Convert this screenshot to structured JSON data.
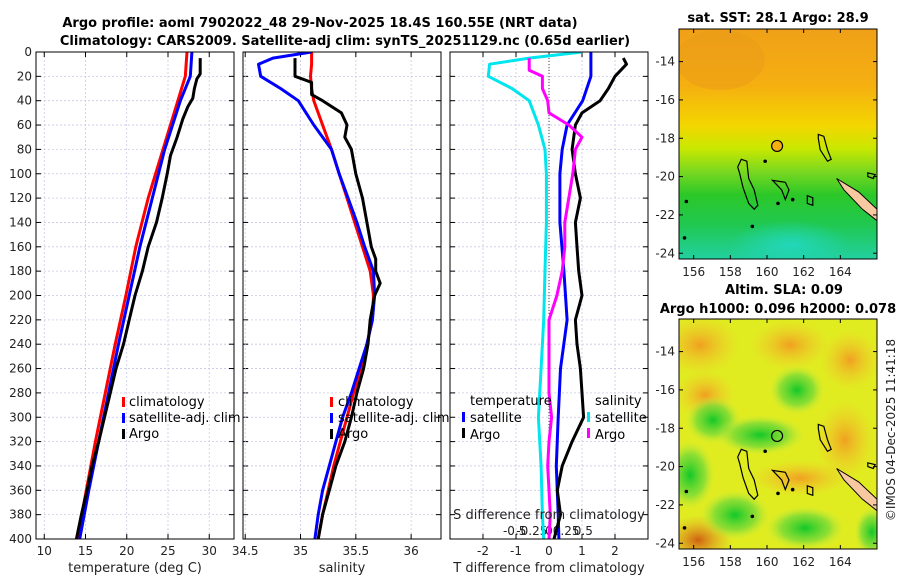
{
  "titles": {
    "line1": "Argo profile: aoml 7902022_48 29-Nov-2025 18.4S 160.55E (NRT data)",
    "line2": "Climatology: CARS2009. Satellite-adj clim: synTS_20251129.nc (0.65d earlier)"
  },
  "colors": {
    "climatology": "#ff0000",
    "satellite": "#0000ff",
    "argo": "#000000",
    "sal_satellite": "#00e5ee",
    "sal_argo": "#ff00ff"
  },
  "chart_data": [
    {
      "type": "line",
      "name": "temperature-profile",
      "xlabel": "temperature (deg C)",
      "ylabel": "",
      "xlim": [
        9,
        33
      ],
      "ylim": [
        400,
        0
      ],
      "xticks": [
        10,
        15,
        20,
        25,
        30
      ],
      "yticks": [
        0,
        20,
        40,
        60,
        80,
        100,
        120,
        140,
        160,
        180,
        200,
        220,
        240,
        260,
        280,
        300,
        320,
        340,
        360,
        380,
        400
      ],
      "grid": true,
      "legend": {
        "placement": "bottom-right",
        "entries": [
          "climatology",
          "satellite-adj. clim",
          "Argo"
        ]
      },
      "series": [
        {
          "name": "climatology",
          "color_key": "climatology",
          "depth": [
            0,
            20,
            40,
            80,
            120,
            160,
            200,
            240,
            280,
            320,
            360,
            400
          ],
          "values": [
            27.3,
            27.1,
            26.2,
            24.4,
            22.6,
            21.1,
            19.9,
            18.6,
            17.4,
            16.2,
            15.1,
            14.0
          ]
        },
        {
          "name": "satellite-adj. clim",
          "color_key": "satellite",
          "depth": [
            0,
            20,
            40,
            80,
            120,
            160,
            200,
            240,
            280,
            320,
            360,
            400
          ],
          "values": [
            27.9,
            27.7,
            26.5,
            24.6,
            23.1,
            21.6,
            20.3,
            19.0,
            17.8,
            16.6,
            15.4,
            14.3
          ]
        },
        {
          "name": "Argo",
          "color_key": "argo",
          "depth": [
            5,
            10,
            18,
            22,
            30,
            38,
            45,
            55,
            70,
            85,
            100,
            120,
            140,
            160,
            180,
            200,
            220,
            240,
            260,
            280,
            300,
            320,
            340,
            360,
            380,
            400
          ],
          "values": [
            28.9,
            28.9,
            28.9,
            28.5,
            28.2,
            28.0,
            27.4,
            26.8,
            26.1,
            25.3,
            24.9,
            24.3,
            23.6,
            22.6,
            21.9,
            21.0,
            20.3,
            19.6,
            18.7,
            18.0,
            17.3,
            16.6,
            15.8,
            15.2,
            14.5,
            13.9
          ]
        }
      ]
    },
    {
      "type": "line",
      "name": "salinity-profile",
      "xlabel": "salinity",
      "xlim": [
        34.48,
        36.27
      ],
      "ylim": [
        400,
        0
      ],
      "xticks": [
        34.5,
        35,
        35.5,
        36
      ],
      "xtick_labels": [
        "34.5",
        "35",
        "35.5",
        "36"
      ],
      "grid": true,
      "legend": {
        "placement": "bottom-right",
        "entries": [
          "climatology",
          "satellite-adj. clim",
          "Argo"
        ]
      },
      "series": [
        {
          "name": "climatology",
          "color_key": "climatology",
          "depth": [
            0,
            10,
            20,
            30,
            40,
            60,
            80,
            100,
            120,
            140,
            160,
            180,
            200,
            220,
            240,
            260,
            280,
            300,
            320,
            340,
            360,
            380,
            400
          ],
          "values": [
            35.1,
            35.1,
            35.09,
            35.1,
            35.12,
            35.2,
            35.28,
            35.35,
            35.42,
            35.49,
            35.56,
            35.63,
            35.66,
            35.65,
            35.6,
            35.55,
            35.48,
            35.42,
            35.36,
            35.3,
            35.25,
            35.2,
            35.16
          ]
        },
        {
          "name": "satellite-adj. clim",
          "color_key": "satellite",
          "depth": [
            0,
            5,
            10,
            20,
            30,
            40,
            60,
            80,
            100,
            120,
            140,
            160,
            180,
            200,
            220,
            240,
            260,
            280,
            300,
            320,
            340,
            360,
            380,
            400
          ],
          "values": [
            35.1,
            34.75,
            34.62,
            34.64,
            34.82,
            34.98,
            35.12,
            35.28,
            35.35,
            35.43,
            35.51,
            35.58,
            35.66,
            35.67,
            35.65,
            35.6,
            35.53,
            35.46,
            35.38,
            35.32,
            35.26,
            35.2,
            35.16,
            35.13
          ]
        },
        {
          "name": "Argo",
          "color_key": "argo",
          "depth": [
            5,
            20,
            25,
            35,
            40,
            50,
            60,
            70,
            80,
            100,
            120,
            140,
            160,
            170,
            180,
            190,
            200,
            220,
            240,
            260,
            280,
            300,
            320,
            340,
            360,
            380,
            400
          ],
          "values": [
            34.95,
            34.95,
            35.1,
            35.1,
            35.2,
            35.37,
            35.42,
            35.4,
            35.46,
            35.5,
            35.56,
            35.6,
            35.64,
            35.68,
            35.68,
            35.72,
            35.67,
            35.63,
            35.61,
            35.57,
            35.51,
            35.46,
            35.4,
            35.32,
            35.26,
            35.2,
            35.16
          ]
        }
      ]
    },
    {
      "type": "line",
      "name": "difference-profile",
      "xlabel": "T difference from climatology",
      "xlim": [
        -3,
        3
      ],
      "ylim": [
        400,
        0
      ],
      "xticks": [
        -2,
        -1,
        0,
        1,
        2
      ],
      "top_axis_label": "S difference from climatology",
      "top_xticks": [
        "-0.5",
        "-0.25",
        "0",
        "0.25",
        "0.5"
      ],
      "grid": true,
      "legend": {
        "placement": "bottom",
        "temperature_heading": "temperature",
        "salinity_heading": "salinity",
        "entries": [
          "satellite",
          "Argo",
          "satellite",
          "Argo"
        ]
      },
      "series": [
        {
          "name": "temperature satellite",
          "color_key": "satellite",
          "depth": [
            0,
            20,
            40,
            60,
            80,
            100,
            140,
            180,
            220,
            260,
            300,
            340,
            380,
            400
          ],
          "values": [
            1.27,
            1.27,
            1.02,
            0.55,
            0.4,
            0.33,
            0.33,
            0.45,
            0.55,
            0.35,
            0.28,
            0.22,
            0.28,
            0.3
          ]
        },
        {
          "name": "temperature Argo",
          "color_key": "argo",
          "depth": [
            5,
            10,
            20,
            30,
            40,
            50,
            60,
            80,
            100,
            120,
            140,
            160,
            180,
            200,
            220,
            240,
            260,
            280,
            300,
            320,
            340,
            360,
            380,
            400
          ],
          "values": [
            2.25,
            2.35,
            2.0,
            1.8,
            1.55,
            1.0,
            0.8,
            0.7,
            0.8,
            0.95,
            0.8,
            0.85,
            0.9,
            1.0,
            0.8,
            0.85,
            0.95,
            1.0,
            1.05,
            0.7,
            0.4,
            0.25,
            0.35,
            0.15
          ]
        },
        {
          "name": "salinity satellite",
          "color_key": "sal_satellite",
          "depth": [
            0,
            5,
            10,
            20,
            30,
            40,
            60,
            80,
            100,
            140,
            180,
            220,
            260,
            300,
            340,
            380,
            400
          ],
          "values": [
            0.25,
            -0.15,
            -0.45,
            -0.46,
            -0.28,
            -0.15,
            -0.08,
            -0.03,
            -0.02,
            -0.02,
            -0.03,
            -0.04,
            -0.06,
            -0.08,
            -0.06,
            -0.05,
            -0.04
          ]
        },
        {
          "name": "salinity Argo",
          "color_key": "sal_argo",
          "depth": [
            5,
            15,
            20,
            30,
            40,
            50,
            60,
            70,
            80,
            100,
            120,
            140,
            160,
            180,
            200,
            220,
            240,
            260,
            280,
            300,
            320,
            340,
            360,
            380,
            400
          ],
          "values": [
            -0.15,
            -0.15,
            -0.05,
            -0.05,
            -0.01,
            0.0,
            0.15,
            0.25,
            0.2,
            0.18,
            0.15,
            0.12,
            0.12,
            0.1,
            0.06,
            0.0,
            0.0,
            0.0,
            0.0,
            0.02,
            0.0,
            -0.01,
            0.0,
            0.01,
            0.0
          ]
        }
      ]
    },
    {
      "type": "heatmap",
      "name": "sst-map",
      "title": "sat. SST: 28.1 Argo: 28.9",
      "xlim": [
        155.2,
        166.0
      ],
      "ylim": [
        -24.3,
        -12.3
      ],
      "xticks": [
        156,
        158,
        160,
        162,
        164
      ],
      "yticks": [
        -14,
        -16,
        -18,
        -20,
        -22,
        -24
      ],
      "argo_position": {
        "lon": 160.55,
        "lat": -18.4
      }
    },
    {
      "type": "heatmap",
      "name": "sla-map",
      "title_line1": "Altim. SLA: 0.09",
      "title_line2": "Argo h1000: 0.096 h2000: 0.078",
      "xlim": [
        155.2,
        166.0
      ],
      "ylim": [
        -24.3,
        -12.3
      ],
      "xticks": [
        156,
        158,
        160,
        162,
        164
      ],
      "yticks": [
        -14,
        -16,
        -18,
        -20,
        -22,
        -24
      ],
      "argo_position": {
        "lon": 160.55,
        "lat": -18.4
      }
    }
  ],
  "watermark": "©IMOS 04-Dec-2025 11:41:18"
}
